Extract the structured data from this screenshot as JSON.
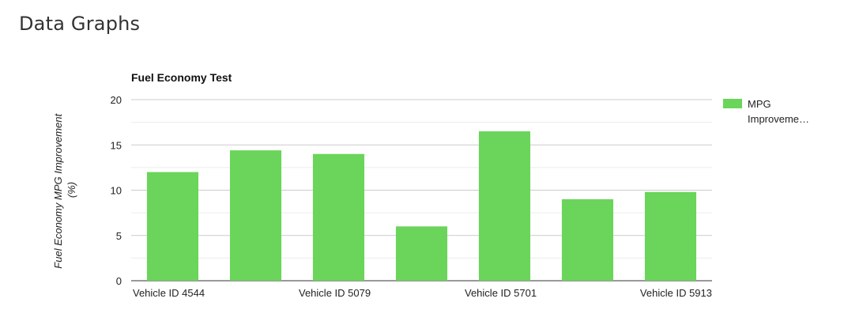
{
  "page": {
    "title": "Data Graphs"
  },
  "chart_data": {
    "type": "bar",
    "title": "Fuel Economy Test",
    "ylabel": "Fuel Economy MPG Improvement (%)",
    "ylabel_lines": [
      "Fuel Economy MPG Improvement",
      "(%)"
    ],
    "xlabel": "",
    "ylim": [
      0,
      20
    ],
    "yticks": [
      0,
      5,
      10,
      15,
      20
    ],
    "grid": true,
    "legend_position": "right",
    "categories": [
      "Vehicle ID 4544",
      "",
      "Vehicle ID 5079",
      "",
      "Vehicle ID 5701",
      "",
      "Vehicle ID 5913"
    ],
    "x_tick_labels": [
      "Vehicle ID 4544",
      "Vehicle ID 5079",
      "Vehicle ID 5701",
      "Vehicle ID 5913"
    ],
    "series": [
      {
        "name": "MPG Improvement",
        "legend_label_lines": [
          "MPG",
          "Improveme…"
        ],
        "color": "#6ad55a",
        "values": [
          12,
          14.4,
          14,
          6,
          16.5,
          9,
          9.8
        ]
      }
    ]
  }
}
